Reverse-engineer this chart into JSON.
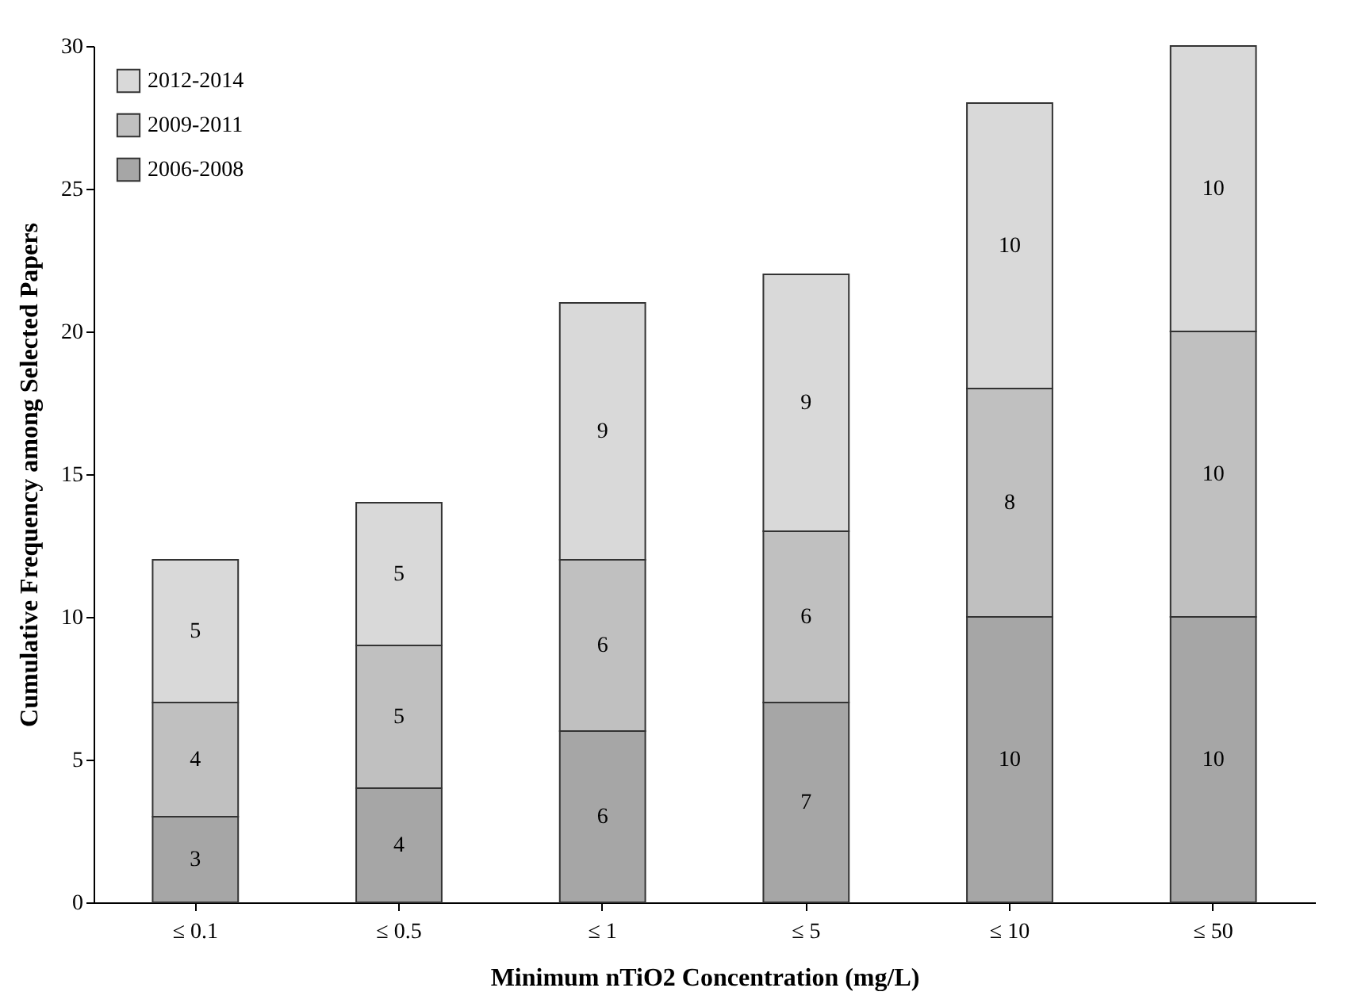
{
  "chart_data": {
    "type": "bar",
    "stacked": true,
    "xlabel": "Minimum nTiO2 Concentration (mg/L)",
    "ylabel": "Cumulative Frequency among Selected Papers",
    "categories": [
      "≤ 0.1",
      "≤ 0.5",
      "≤ 1",
      "≤ 5",
      "≤ 10",
      "≤ 50"
    ],
    "series": [
      {
        "name": "2006-2008",
        "color": "#a6a6a6",
        "values": [
          3,
          4,
          6,
          7,
          10,
          10
        ]
      },
      {
        "name": "2009-2011",
        "color": "#c0c0c0",
        "values": [
          4,
          5,
          6,
          6,
          8,
          10
        ]
      },
      {
        "name": "2012-2014",
        "color": "#d9d9d9",
        "values": [
          5,
          5,
          9,
          9,
          10,
          10
        ]
      }
    ],
    "ylim": [
      0,
      30
    ],
    "yticks": [
      0,
      5,
      10,
      15,
      20,
      25,
      30
    ],
    "grid": false,
    "legend": "top left",
    "data_labels": true
  }
}
